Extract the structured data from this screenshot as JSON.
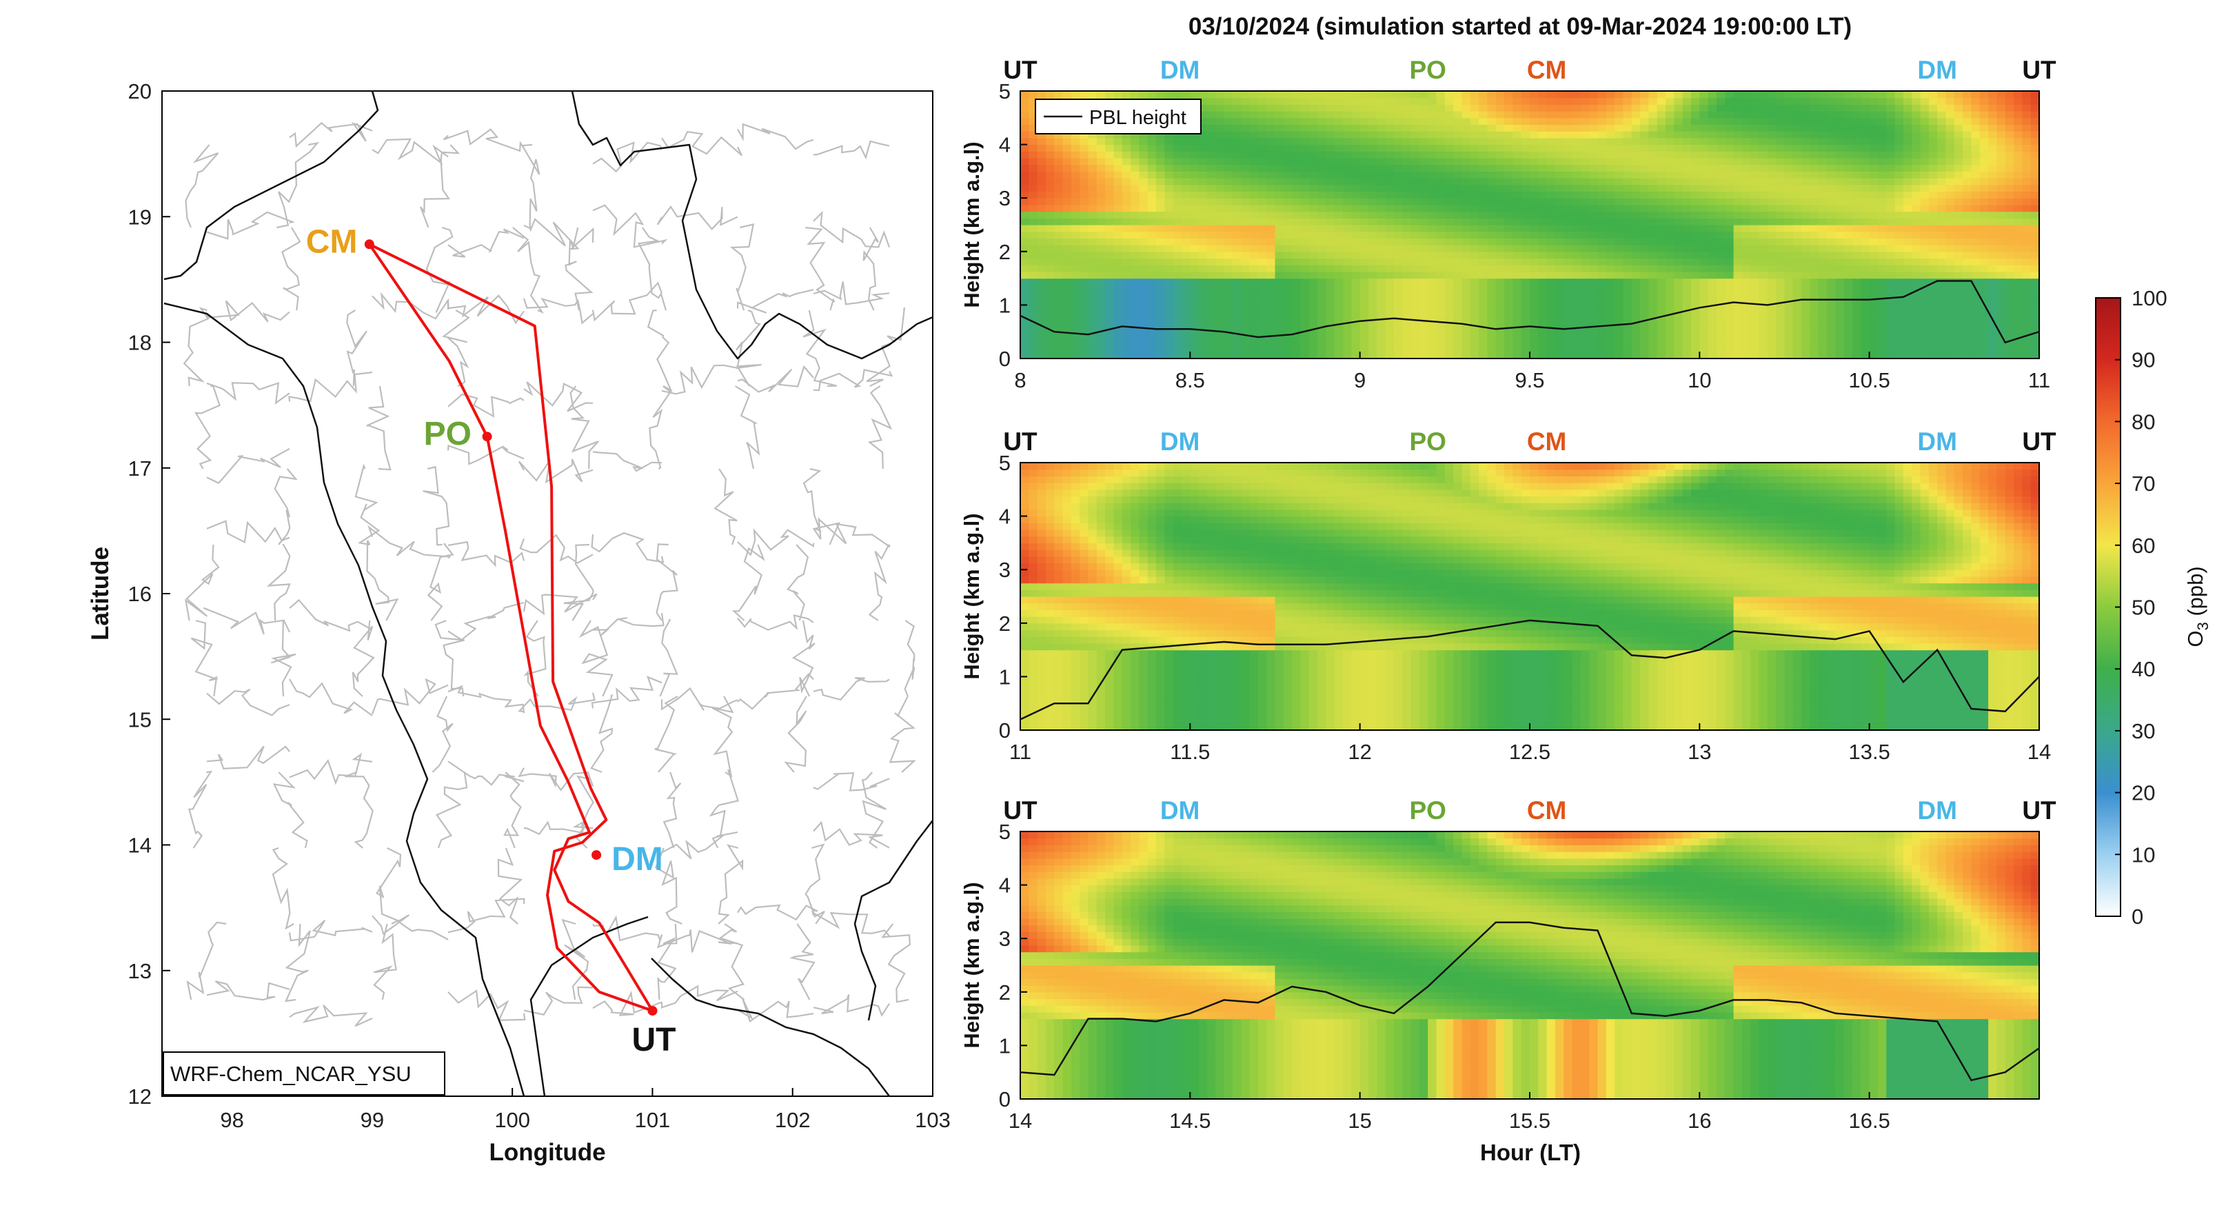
{
  "figure_title": "03/10/2024 (simulation started at 09-Mar-2024 19:00:00 LT)",
  "colors": {
    "route": "#ee1111",
    "CM": "#e8a019",
    "PO": "#6aa535",
    "DM": "#48b6e8",
    "UT": "#111111",
    "CM_top": "#e05516",
    "boundary": "#bdbdbd",
    "coast": "#111111",
    "colormap": [
      "#ffffff",
      "#9bd0f0",
      "#3b8fd0",
      "#3aa88a",
      "#3fb04a",
      "#8ccb3e",
      "#f3e64a",
      "#f9a53a",
      "#f26a2c",
      "#d4281f",
      "#a51618"
    ]
  },
  "chart_data": [
    {
      "type": "map",
      "id": "map",
      "xlabel": "Longitude",
      "ylabel": "Latitude",
      "xlim": [
        97.5,
        103
      ],
      "ylim": [
        12,
        20
      ],
      "xticks": [
        "98",
        "99",
        "100",
        "101",
        "102",
        "103"
      ],
      "yticks": [
        "12",
        "13",
        "14",
        "15",
        "16",
        "17",
        "18",
        "19",
        "20"
      ],
      "annotation": "WRF-Chem_NCAR_YSU",
      "stations": [
        {
          "name": "CM",
          "lon": 98.98,
          "lat": 18.78
        },
        {
          "name": "PO",
          "lon": 99.82,
          "lat": 17.25
        },
        {
          "name": "DM",
          "lon": 100.6,
          "lat": 13.92
        },
        {
          "name": "UT",
          "lon": 101.0,
          "lat": 12.68
        }
      ],
      "route": [
        [
          98.98,
          18.78
        ],
        [
          100.16,
          18.13
        ],
        [
          100.28,
          16.85
        ],
        [
          100.29,
          15.3
        ],
        [
          100.56,
          14.45
        ],
        [
          100.67,
          14.2
        ],
        [
          100.5,
          14.02
        ],
        [
          100.3,
          13.95
        ],
        [
          100.25,
          13.6
        ],
        [
          100.32,
          13.18
        ],
        [
          100.62,
          12.83
        ],
        [
          101.0,
          12.68
        ],
        [
          100.8,
          13.05
        ],
        [
          100.62,
          13.38
        ],
        [
          100.4,
          13.55
        ],
        [
          100.3,
          13.8
        ],
        [
          100.4,
          14.05
        ],
        [
          100.55,
          14.1
        ],
        [
          100.4,
          14.5
        ],
        [
          100.2,
          14.95
        ],
        [
          99.95,
          16.5
        ],
        [
          99.82,
          17.25
        ],
        [
          99.55,
          17.85
        ],
        [
          98.98,
          18.78
        ]
      ]
    },
    {
      "type": "heatmap",
      "id": "panel1",
      "xlim": [
        8,
        11
      ],
      "ylim": [
        0,
        5
      ],
      "xticks": [
        "8",
        "8.5",
        "9",
        "9.5",
        "10",
        "10.5",
        "11"
      ],
      "yticks": [
        "0",
        "1",
        "2",
        "3",
        "4",
        "5"
      ],
      "ylabel": "Height (km a.g.l)",
      "legend": "PBL height",
      "top_labels": [
        {
          "label": "UT",
          "x": 8.0
        },
        {
          "label": "DM",
          "x": 8.47
        },
        {
          "label": "PO",
          "x": 9.2
        },
        {
          "label": "CM",
          "x": 9.55
        },
        {
          "label": "DM",
          "x": 10.7
        },
        {
          "label": "UT",
          "x": 11.0
        }
      ],
      "pbl_x": [
        8,
        8.1,
        8.2,
        8.3,
        8.4,
        8.5,
        8.6,
        8.7,
        8.8,
        8.9,
        9.0,
        9.1,
        9.2,
        9.3,
        9.4,
        9.5,
        9.6,
        9.7,
        9.8,
        9.9,
        10.0,
        10.1,
        10.2,
        10.3,
        10.4,
        10.5,
        10.6,
        10.7,
        10.8,
        10.9,
        11.0
      ],
      "pbl_y": [
        0.8,
        0.5,
        0.45,
        0.6,
        0.55,
        0.55,
        0.5,
        0.4,
        0.45,
        0.6,
        0.7,
        0.75,
        0.7,
        0.65,
        0.55,
        0.6,
        0.55,
        0.6,
        0.65,
        0.8,
        0.95,
        1.05,
        1.0,
        1.1,
        1.1,
        1.1,
        1.15,
        1.45,
        1.45,
        0.3,
        0.5
      ]
    },
    {
      "type": "heatmap",
      "id": "panel2",
      "xlim": [
        11,
        14
      ],
      "ylim": [
        0,
        5
      ],
      "xticks": [
        "11",
        "11.5",
        "12",
        "12.5",
        "13",
        "13.5",
        "14"
      ],
      "yticks": [
        "0",
        "1",
        "2",
        "3",
        "4",
        "5"
      ],
      "ylabel": "Height (km a.g.l)",
      "top_labels": [
        {
          "label": "UT",
          "x": 11.0
        },
        {
          "label": "DM",
          "x": 11.47
        },
        {
          "label": "PO",
          "x": 12.2
        },
        {
          "label": "CM",
          "x": 12.55
        },
        {
          "label": "DM",
          "x": 13.7
        },
        {
          "label": "UT",
          "x": 14.0
        }
      ],
      "pbl_x": [
        11,
        11.1,
        11.2,
        11.3,
        11.4,
        11.5,
        11.6,
        11.7,
        11.8,
        11.9,
        12.0,
        12.1,
        12.2,
        12.3,
        12.4,
        12.5,
        12.6,
        12.7,
        12.8,
        12.9,
        13.0,
        13.1,
        13.2,
        13.3,
        13.4,
        13.5,
        13.6,
        13.7,
        13.8,
        13.9,
        14.0
      ],
      "pbl_y": [
        0.2,
        0.5,
        0.5,
        1.5,
        1.55,
        1.6,
        1.65,
        1.6,
        1.6,
        1.6,
        1.65,
        1.7,
        1.75,
        1.85,
        1.95,
        2.05,
        2.0,
        1.95,
        1.4,
        1.35,
        1.5,
        1.85,
        1.8,
        1.75,
        1.7,
        1.85,
        0.9,
        1.5,
        0.4,
        0.35,
        1.0
      ]
    },
    {
      "type": "heatmap",
      "id": "panel3",
      "xlim": [
        14,
        17
      ],
      "ylim": [
        0,
        5
      ],
      "xticks": [
        "14",
        "14.5",
        "15",
        "15.5",
        "16",
        "16.5"
      ],
      "yticks": [
        "0",
        "1",
        "2",
        "3",
        "4",
        "5"
      ],
      "ylabel": "Height (km a.g.l)",
      "xlabel": "Hour (LT)",
      "top_labels": [
        {
          "label": "UT",
          "x": 14.0
        },
        {
          "label": "DM",
          "x": 14.47
        },
        {
          "label": "PO",
          "x": 15.2
        },
        {
          "label": "CM",
          "x": 15.55
        },
        {
          "label": "DM",
          "x": 16.7
        },
        {
          "label": "UT",
          "x": 17.0
        }
      ],
      "pbl_x": [
        14,
        14.1,
        14.2,
        14.3,
        14.4,
        14.5,
        14.6,
        14.7,
        14.8,
        14.9,
        15.0,
        15.1,
        15.2,
        15.3,
        15.4,
        15.5,
        15.6,
        15.7,
        15.8,
        15.9,
        16.0,
        16.1,
        16.2,
        16.3,
        16.4,
        16.5,
        16.6,
        16.7,
        16.8,
        16.9,
        17.0
      ],
      "pbl_y": [
        0.5,
        0.45,
        1.5,
        1.5,
        1.45,
        1.6,
        1.85,
        1.8,
        2.1,
        2.0,
        1.75,
        1.6,
        2.1,
        2.7,
        3.3,
        3.3,
        3.2,
        3.15,
        1.6,
        1.55,
        1.65,
        1.85,
        1.85,
        1.8,
        1.6,
        1.55,
        1.5,
        1.45,
        0.35,
        0.5,
        0.95
      ]
    },
    {
      "type": "colorbar",
      "id": "colorbar",
      "label": "O",
      "label_sub": "3",
      "label_unit": " (ppb)",
      "range": [
        0,
        100
      ],
      "ticks": [
        "0",
        "10",
        "20",
        "30",
        "40",
        "50",
        "60",
        "70",
        "80",
        "90",
        "100"
      ]
    }
  ]
}
